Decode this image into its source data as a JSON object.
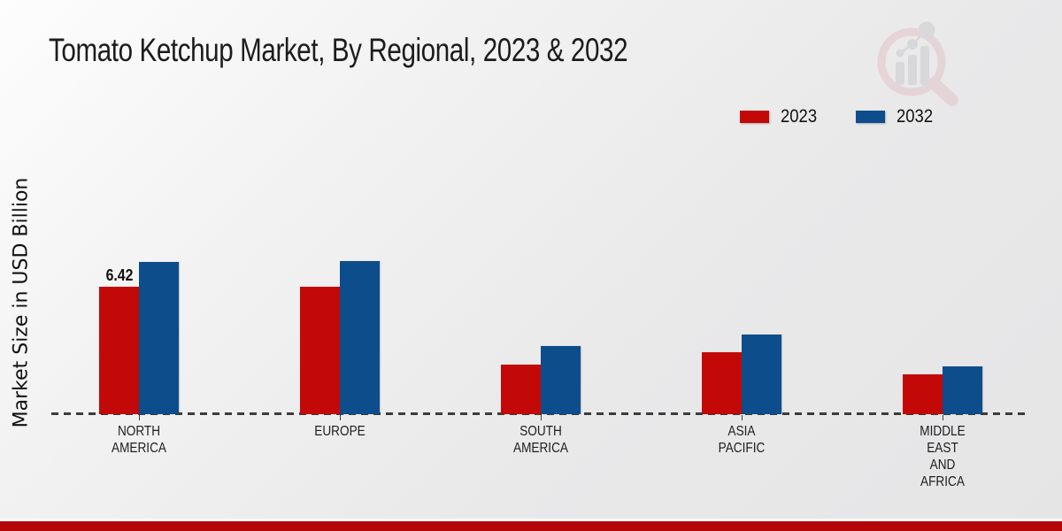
{
  "title": "Tomato Ketchup Market, By Regional, 2023 & 2032",
  "y_axis_label": "Market Size in USD Billion",
  "legend": [
    {
      "label": "2023",
      "color": "#c30808"
    },
    {
      "label": "2032",
      "color": "#0e4d8b"
    }
  ],
  "colors": {
    "bar_2023": "#c30808",
    "bar_2032": "#0e4d8b",
    "footer_bar": "#b30606",
    "baseline": "#3c3c3c"
  },
  "watermark_name": "market-research-future-logo",
  "chart_data": {
    "type": "bar",
    "title": "Tomato Ketchup Market, By Regional, 2023 & 2032",
    "xlabel": "",
    "ylabel": "Market Size in USD Billion",
    "categories": [
      "NORTH AMERICA",
      "EUROPE",
      "SOUTH AMERICA",
      "ASIA PACIFIC",
      "MIDDLE EAST AND AFRICA"
    ],
    "category_label_lines": [
      [
        "NORTH",
        "AMERICA"
      ],
      [
        "EUROPE"
      ],
      [
        "SOUTH",
        "AMERICA"
      ],
      [
        "ASIA",
        "PACIFIC"
      ],
      [
        "MIDDLE",
        "EAST",
        "AND",
        "AFRICA"
      ]
    ],
    "series": [
      {
        "name": "2023",
        "color": "#c30808",
        "values": [
          6.42,
          6.4,
          2.5,
          3.12,
          1.98
        ],
        "shown_labels": [
          "6.42",
          null,
          null,
          null,
          null
        ]
      },
      {
        "name": "2032",
        "color": "#0e4d8b",
        "values": [
          7.66,
          7.68,
          3.4,
          4.02,
          2.42
        ],
        "shown_labels": [
          null,
          null,
          null,
          null,
          null
        ]
      }
    ],
    "ylim": [
      0,
      8.5
    ],
    "grid": false,
    "axis_line": "dashed-baseline-only",
    "legend_position": "top-right"
  }
}
